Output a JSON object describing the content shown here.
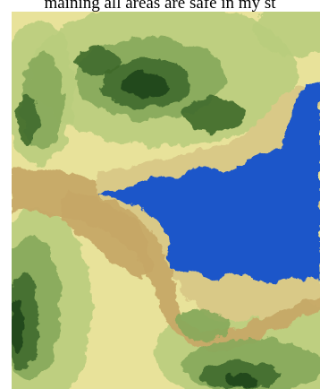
{
  "caption": {
    "text": "maining all areas are safe in my st"
  },
  "map": {
    "kind": "elevation relief map with water body",
    "colors": {
      "water": "#1f56c9",
      "lowland_tan": "#c6a866",
      "light_tan": "#d9c987",
      "pale_yellow": "#e8e29a",
      "light_green": "#b9cd7d",
      "mid_green": "#86a85a",
      "dark_green": "#3f6a2c",
      "deep_green": "#24491b"
    }
  }
}
